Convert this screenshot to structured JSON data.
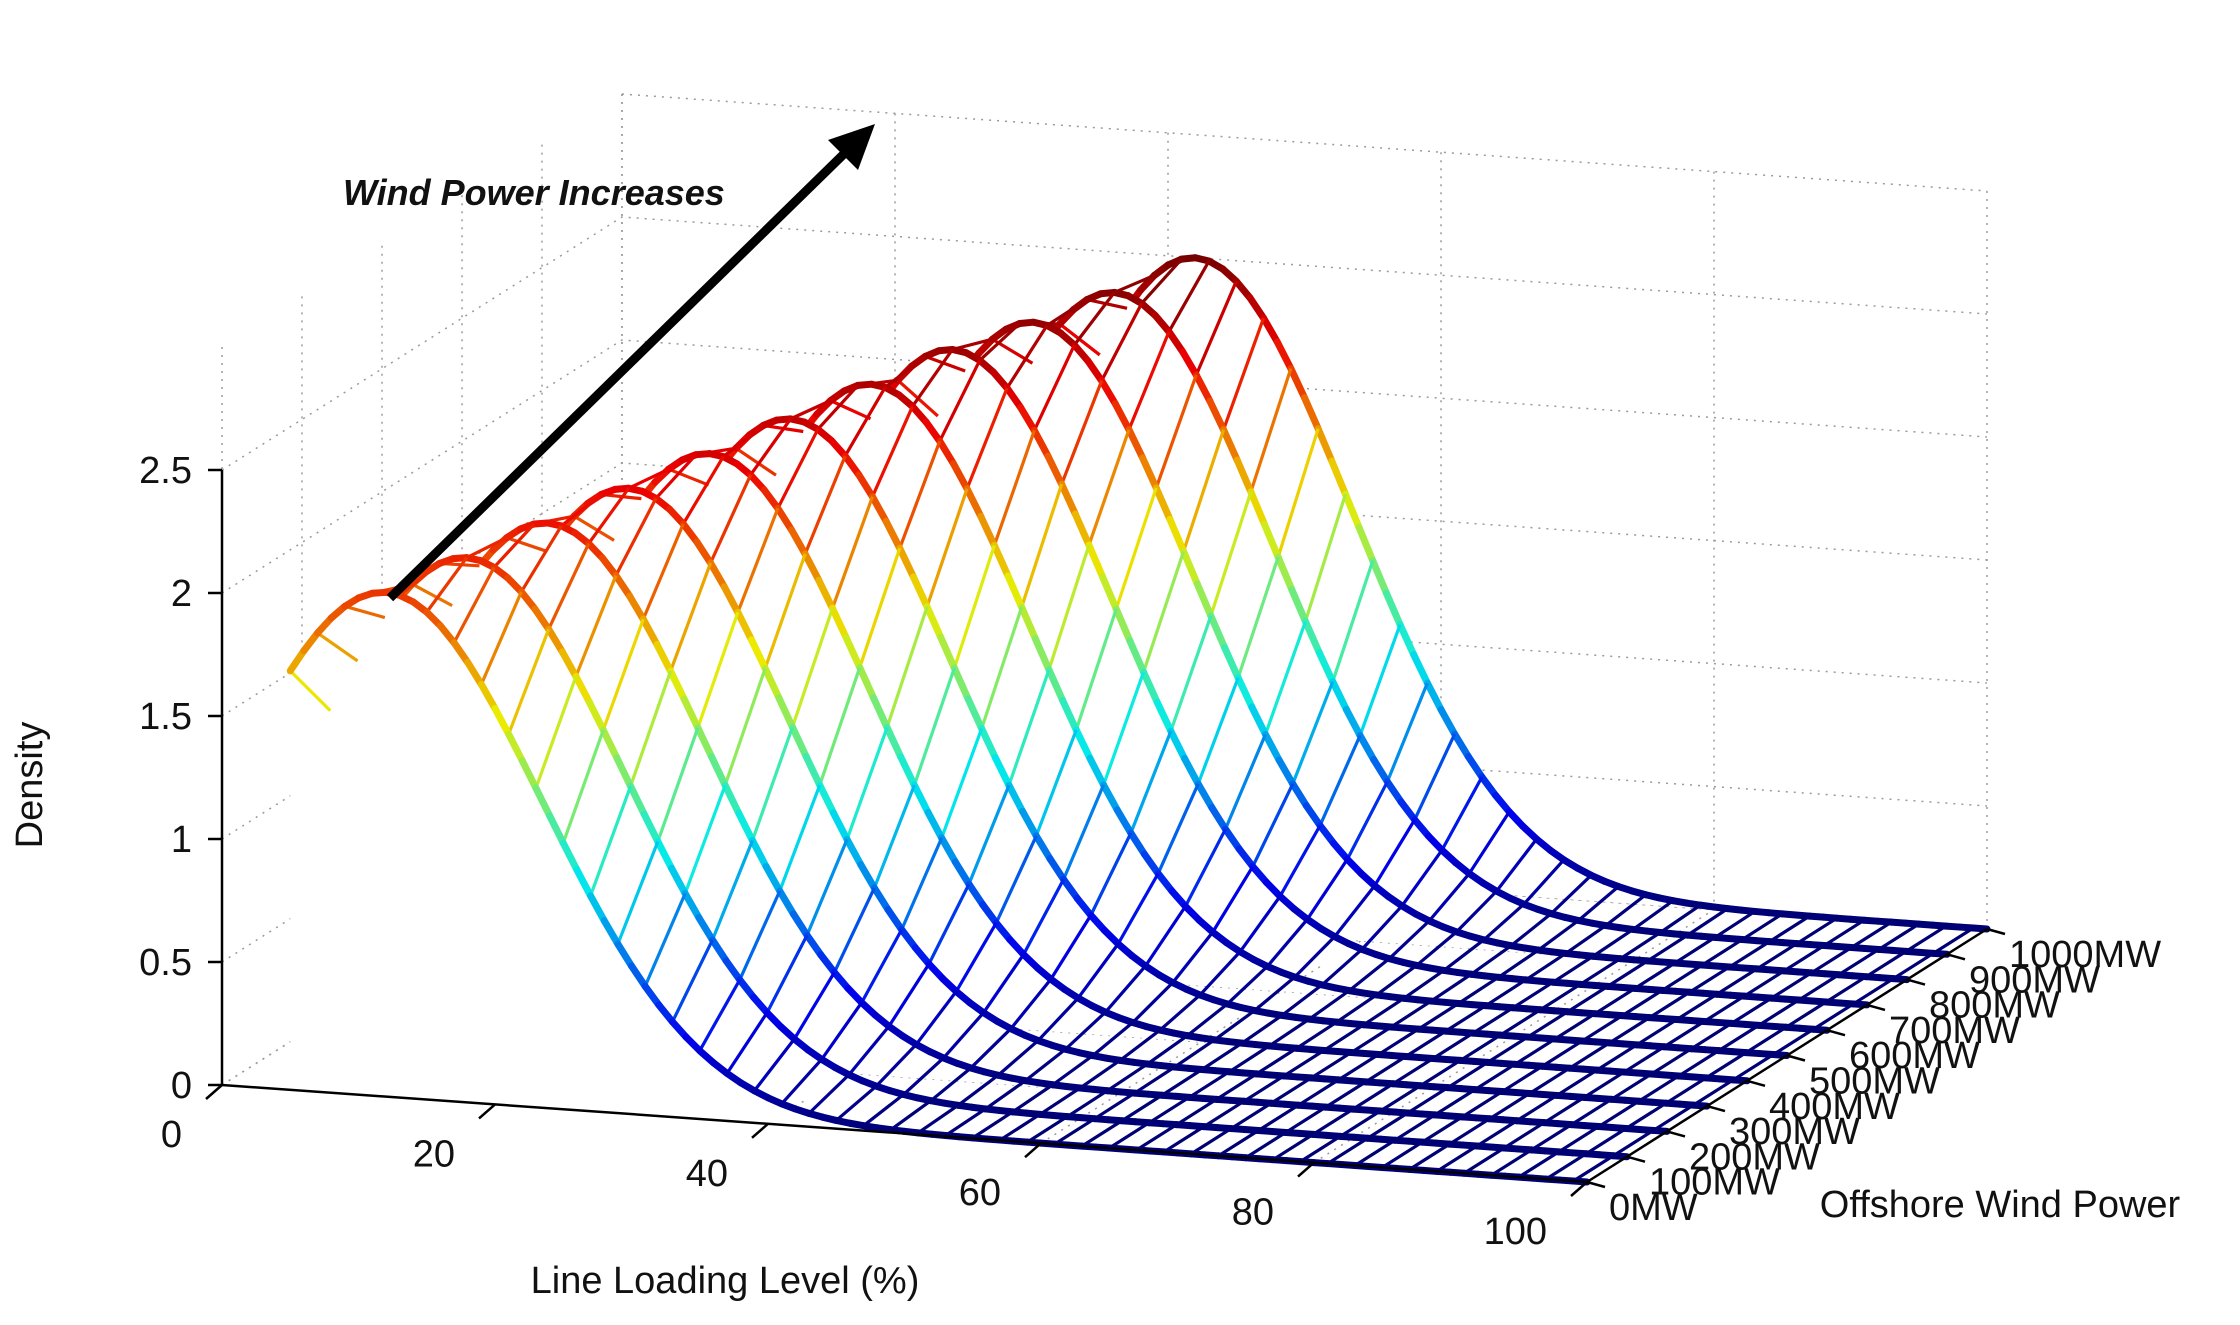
{
  "chart_data": {
    "type": "surface3d",
    "title": "",
    "annotation": "Wind Power Increases",
    "xlabel": "Line Loading Level (%)",
    "ylabel": "Offshore Wind Power",
    "zlabel": "Density",
    "x_ticks": [
      "0",
      "20",
      "40",
      "60",
      "80",
      "100"
    ],
    "x_tick_values": [
      0,
      20,
      40,
      60,
      80,
      100
    ],
    "y_ticks": [
      "0MW",
      "100MW",
      "200MW",
      "300MW",
      "400MW",
      "500MW",
      "600MW",
      "700MW",
      "800MW",
      "900MW",
      "1000MW"
    ],
    "y_tick_values": [
      0,
      100,
      200,
      300,
      400,
      500,
      600,
      700,
      800,
      900,
      1000
    ],
    "z_ticks": [
      "0",
      "0.5",
      "1",
      "1.5",
      "2",
      "2.5"
    ],
    "z_tick_values": [
      0,
      0.5,
      1,
      1.5,
      2,
      2.5
    ],
    "xlim": [
      0,
      100
    ],
    "ylim": [
      0,
      1000
    ],
    "zlim": [
      0,
      2.5
    ],
    "grid": true,
    "colormap": "jet",
    "series": [
      {
        "name": "0MW",
        "peak_x": 12,
        "peak_density": 2.05
      },
      {
        "name": "100MW",
        "peak_x": 15,
        "peak_density": 2.1
      },
      {
        "name": "200MW",
        "peak_x": 18,
        "peak_density": 2.15
      },
      {
        "name": "300MW",
        "peak_x": 21,
        "peak_density": 2.2
      },
      {
        "name": "400MW",
        "peak_x": 24,
        "peak_density": 2.25
      },
      {
        "name": "500MW",
        "peak_x": 27,
        "peak_density": 2.3
      },
      {
        "name": "600MW",
        "peak_x": 30,
        "peak_density": 2.35
      },
      {
        "name": "700MW",
        "peak_x": 33,
        "peak_density": 2.4
      },
      {
        "name": "800MW",
        "peak_x": 36,
        "peak_density": 2.42
      },
      {
        "name": "900MW",
        "peak_x": 39,
        "peak_density": 2.45
      },
      {
        "name": "1000MW",
        "peak_x": 42,
        "peak_density": 2.5
      }
    ]
  }
}
